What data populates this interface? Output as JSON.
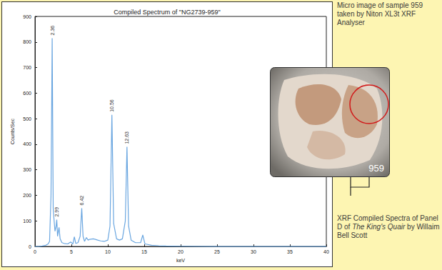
{
  "chart_data": {
    "type": "line",
    "title": "Compiled Spectrum of \"NG2739-959\"",
    "x_label": "keV",
    "y_label": "Counts/Sec",
    "color": "#6aa6e0",
    "x": [
      0,
      0.5,
      1,
      1.5,
      1.8,
      2.0,
      2.2,
      2.36,
      2.5,
      2.6,
      2.75,
      2.9,
      2.99,
      3.1,
      3.3,
      3.45,
      3.7,
      4.0,
      4.5,
      4.9,
      5.0,
      5.2,
      5.4,
      5.6,
      5.9,
      6.2,
      6.42,
      6.6,
      6.8,
      7.06,
      7.3,
      7.5,
      8.0,
      8.3,
      8.6,
      9.0,
      9.5,
      10.0,
      10.3,
      10.56,
      10.8,
      11.2,
      11.6,
      12.0,
      12.4,
      12.63,
      12.85,
      13.2,
      13.8,
      14.5,
      14.8,
      15.1,
      16,
      17,
      18,
      20,
      25,
      30,
      35,
      40
    ],
    "values": [
      0,
      0,
      2,
      5,
      10,
      20,
      200,
      815,
      150,
      110,
      60,
      80,
      105,
      40,
      75,
      30,
      15,
      12,
      10,
      18,
      15,
      10,
      38,
      12,
      15,
      40,
      150,
      40,
      20,
      35,
      25,
      28,
      30,
      28,
      25,
      22,
      20,
      25,
      80,
      515,
      90,
      30,
      25,
      30,
      100,
      390,
      80,
      25,
      15,
      15,
      45,
      10,
      5,
      3,
      2,
      1,
      0,
      0,
      0,
      0
    ],
    "peaks": [
      2.36,
      2.99,
      6.42,
      10.56,
      12.63
    ],
    "xlim": [
      0,
      40
    ],
    "xticks": [
      0,
      5,
      10,
      15,
      20,
      25,
      30,
      35,
      40
    ],
    "ylim": [
      0,
      900
    ],
    "yticks": [
      0,
      100,
      200,
      300,
      400,
      500,
      600,
      700,
      800,
      900
    ],
    "grid": false,
    "annotations": [
      {
        "text": "Micro image of sample 959 taken by Niton XL3t XRF Analyser"
      },
      {
        "text": "959"
      },
      {
        "text": "XRF Compiled Spectra of Panel D of The King's Quair by Willaim Bell Scott",
        "italic": "The King's Quair"
      }
    ]
  }
}
